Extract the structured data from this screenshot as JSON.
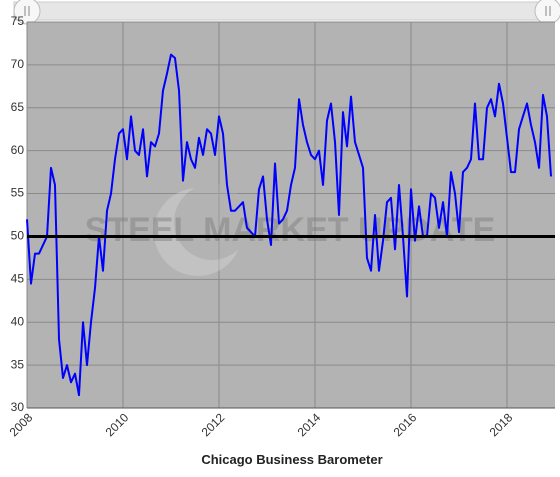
{
  "chart_data": {
    "type": "line",
    "title": "Chicago Business Barometer",
    "watermark": "STEEL MARKET UPDATE",
    "color": "#0000ff",
    "reference_line": 50,
    "grid": true,
    "xlim": [
      2008,
      2019
    ],
    "xticks": [
      2008,
      2010,
      2012,
      2014,
      2016,
      2018
    ],
    "ylim": [
      30,
      75
    ],
    "yticks": [
      30,
      35,
      40,
      45,
      50,
      55,
      60,
      65,
      70,
      75
    ],
    "x": [
      2008,
      2008.083,
      2008.167,
      2008.25,
      2008.333,
      2008.417,
      2008.5,
      2008.583,
      2008.667,
      2008.75,
      2008.833,
      2008.917,
      2009,
      2009.083,
      2009.167,
      2009.25,
      2009.333,
      2009.417,
      2009.5,
      2009.583,
      2009.667,
      2009.75,
      2009.833,
      2009.917,
      2010,
      2010.083,
      2010.167,
      2010.25,
      2010.333,
      2010.417,
      2010.5,
      2010.583,
      2010.667,
      2010.75,
      2010.833,
      2010.917,
      2011,
      2011.083,
      2011.167,
      2011.25,
      2011.333,
      2011.417,
      2011.5,
      2011.583,
      2011.667,
      2011.75,
      2011.833,
      2011.917,
      2012,
      2012.083,
      2012.167,
      2012.25,
      2012.333,
      2012.417,
      2012.5,
      2012.583,
      2012.667,
      2012.75,
      2012.833,
      2012.917,
      2013,
      2013.083,
      2013.167,
      2013.25,
      2013.333,
      2013.417,
      2013.5,
      2013.583,
      2013.667,
      2013.75,
      2013.833,
      2013.917,
      2014,
      2014.083,
      2014.167,
      2014.25,
      2014.333,
      2014.417,
      2014.5,
      2014.583,
      2014.667,
      2014.75,
      2014.833,
      2014.917,
      2015,
      2015.083,
      2015.167,
      2015.25,
      2015.333,
      2015.417,
      2015.5,
      2015.583,
      2015.667,
      2015.75,
      2015.833,
      2015.917,
      2016,
      2016.083,
      2016.167,
      2016.25,
      2016.333,
      2016.417,
      2016.5,
      2016.583,
      2016.667,
      2016.75,
      2016.833,
      2016.917,
      2017,
      2017.083,
      2017.167,
      2017.25,
      2017.333,
      2017.417,
      2017.5,
      2017.583,
      2017.667,
      2017.75,
      2017.833,
      2017.917,
      2018,
      2018.083,
      2018.167,
      2018.25,
      2018.333,
      2018.417,
      2018.5,
      2018.583,
      2018.667,
      2018.75,
      2018.833,
      2018.917
    ],
    "values": [
      52,
      44.5,
      48,
      48,
      49,
      50,
      58,
      56,
      38,
      33.5,
      35,
      33,
      34,
      31.5,
      40,
      35,
      40,
      44,
      50,
      46,
      53,
      55,
      59,
      62,
      62.5,
      59,
      64,
      60,
      59.5,
      62.5,
      57,
      61,
      60.5,
      62,
      67,
      69,
      71.2,
      70.8,
      67,
      56.5,
      61,
      59,
      58,
      61.5,
      59.5,
      62.5,
      62,
      59.5,
      64,
      62,
      56,
      53,
      53,
      53.5,
      54,
      51,
      50.5,
      50,
      55.5,
      57,
      52,
      49,
      58.5,
      51.5,
      52,
      53,
      56,
      58,
      66,
      63,
      61,
      59.5,
      59,
      60,
      56,
      63.5,
      65.5,
      61,
      52.5,
      64.5,
      60.5,
      66.3,
      61,
      59.5,
      58,
      47.5,
      46,
      52.5,
      46,
      49.5,
      54,
      54.5,
      48.5,
      56,
      50,
      43,
      55.5,
      49.5,
      53.5,
      50,
      50,
      55,
      54.5,
      51,
      54,
      50,
      57.5,
      55,
      50.5,
      57.5,
      58,
      59,
      65.5,
      59,
      59,
      65,
      66,
      64,
      67.8,
      65.5,
      61.5,
      57.5,
      57.5,
      62.5,
      64,
      65.5,
      63,
      61,
      58,
      66.5,
      64,
      57
    ]
  }
}
